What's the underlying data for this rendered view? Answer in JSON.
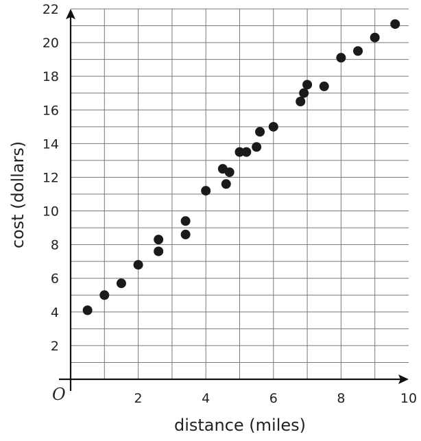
{
  "chart_data": {
    "type": "scatter",
    "xlabel": "distance (miles)",
    "ylabel": "cost (dollars)",
    "origin_label": "O",
    "xlim": [
      0,
      10
    ],
    "ylim": [
      0,
      22
    ],
    "x_grid_step": 1,
    "y_grid_step": 1,
    "x_ticks": [
      2,
      4,
      6,
      8,
      10
    ],
    "y_ticks": [
      2,
      4,
      6,
      8,
      10,
      12,
      14,
      16,
      18,
      20,
      22
    ],
    "grid": true,
    "colors": {
      "points": "#1a1a1a",
      "grid": "#777777",
      "axis": "#111111"
    },
    "points": [
      {
        "x": 0.5,
        "y": 4.1
      },
      {
        "x": 1.0,
        "y": 5.0
      },
      {
        "x": 1.5,
        "y": 5.7
      },
      {
        "x": 2.0,
        "y": 6.8
      },
      {
        "x": 2.6,
        "y": 7.6
      },
      {
        "x": 2.6,
        "y": 8.3
      },
      {
        "x": 3.4,
        "y": 8.6
      },
      {
        "x": 3.4,
        "y": 9.4
      },
      {
        "x": 4.0,
        "y": 11.2
      },
      {
        "x": 4.5,
        "y": 12.5
      },
      {
        "x": 4.6,
        "y": 11.6
      },
      {
        "x": 4.7,
        "y": 12.3
      },
      {
        "x": 5.0,
        "y": 13.5
      },
      {
        "x": 5.2,
        "y": 13.5
      },
      {
        "x": 5.5,
        "y": 13.8
      },
      {
        "x": 5.6,
        "y": 14.7
      },
      {
        "x": 6.0,
        "y": 15.0
      },
      {
        "x": 6.8,
        "y": 16.5
      },
      {
        "x": 6.9,
        "y": 17.0
      },
      {
        "x": 7.0,
        "y": 17.5
      },
      {
        "x": 7.5,
        "y": 17.4
      },
      {
        "x": 8.0,
        "y": 19.1
      },
      {
        "x": 8.5,
        "y": 19.5
      },
      {
        "x": 9.0,
        "y": 20.3
      },
      {
        "x": 9.6,
        "y": 21.1
      }
    ]
  }
}
